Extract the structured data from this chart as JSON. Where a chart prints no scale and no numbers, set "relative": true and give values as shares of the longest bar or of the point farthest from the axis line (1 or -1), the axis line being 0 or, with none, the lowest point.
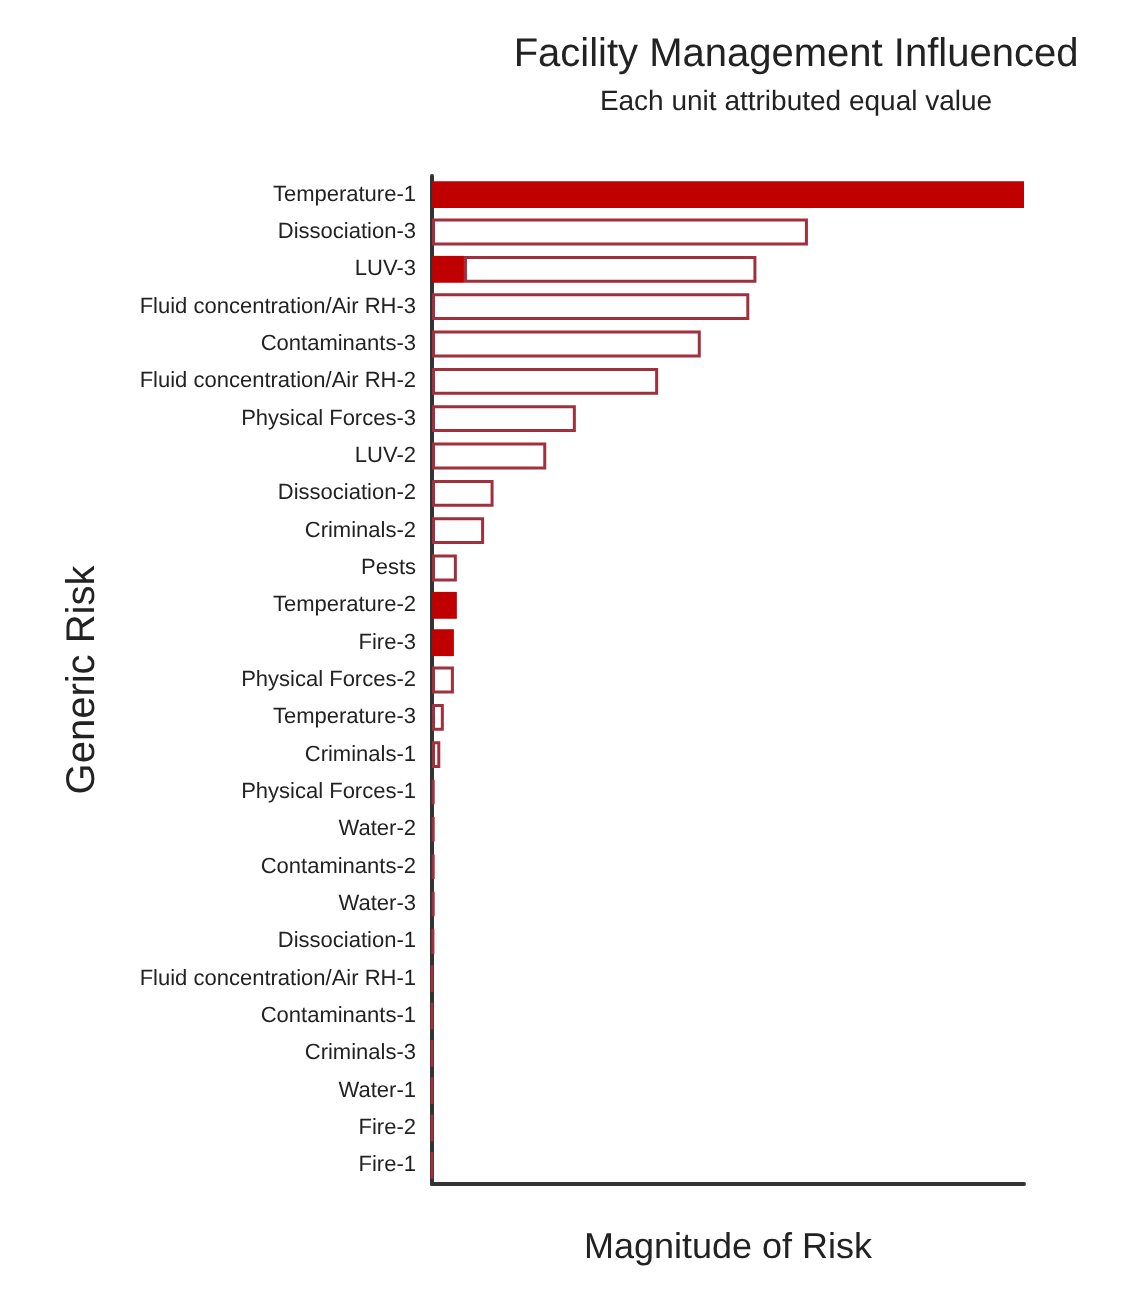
{
  "chart_data": {
    "type": "bar",
    "orientation": "horizontal",
    "stacked": true,
    "relative": true,
    "title": "Facility Management Influenced",
    "subtitle": "Each unit attributed equal value",
    "xlabel": "Magnitude of Risk",
    "ylabel": "Generic Risk",
    "categories": [
      "Temperature-1",
      "Dissociation-3",
      "LUV-3",
      "Fluid concentration/Air RH-3",
      "Contaminants-3",
      "Fluid concentration/Air RH-2",
      "Physical Forces-3",
      "LUV-2",
      "Dissociation-2",
      "Criminals-2",
      "Pests",
      "Temperature-2",
      "Fire-3",
      "Physical Forces-2",
      "Temperature-3",
      "Criminals-1",
      "Physical Forces-1",
      "Water-2",
      "Contaminants-2",
      "Water-3",
      "Dissociation-1",
      "Fluid concentration/Air RH-1",
      "Contaminants-1",
      "Criminals-3",
      "Water-1",
      "Fire-2",
      "Fire-1"
    ],
    "series": [
      {
        "color": "#c00000",
        "values": [
          1,
          null,
          0.054,
          null,
          null,
          null,
          null,
          null,
          null,
          null,
          null,
          0.042,
          0.037,
          null,
          null,
          null,
          null,
          null,
          null,
          null,
          null,
          null,
          null,
          null,
          null,
          null,
          null
        ]
      },
      {
        "color": "#a0303c",
        "values": [
          null,
          0.635,
          0.494,
          0.536,
          0.454,
          0.382,
          0.243,
          0.193,
          0.104,
          0.088,
          0.042,
          null,
          null,
          0.037,
          0.02,
          0.014,
          0.004,
          0.004,
          0.004,
          0.004,
          0.003,
          0,
          0,
          0,
          0,
          0,
          0
        ]
      }
    ]
  }
}
